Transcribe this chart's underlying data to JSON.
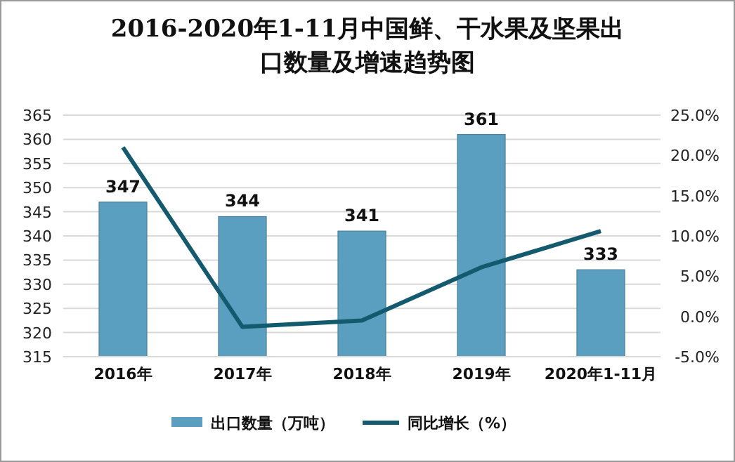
{
  "chart_data": {
    "type": "bar",
    "title": "2016-2020年1-11月中国鲜、干水果及坚果出口数量及增速趋势图",
    "categories": [
      "2016年",
      "2017年",
      "2018年",
      "2019年",
      "2020年1-11月"
    ],
    "series": [
      {
        "name": "出口数量（万吨）",
        "color": "#5b9fc0",
        "values": [
          347,
          344,
          341,
          361,
          333
        ]
      },
      {
        "name": "同比增长（%）",
        "type": "line",
        "axis": "y2",
        "color": "#145a6e",
        "values": [
          21.0,
          -1.3,
          -0.5,
          6.1,
          10.6
        ]
      }
    ],
    "ylim": [
      315,
      365
    ],
    "yticks": [
      315,
      320,
      325,
      330,
      335,
      340,
      345,
      350,
      355,
      360,
      365
    ],
    "y2lim": [
      -5,
      25
    ],
    "y2ticks": [
      {
        "value": -5,
        "label": "-5.0%"
      },
      {
        "value": 0,
        "label": "0.0%"
      },
      {
        "value": 5,
        "label": "5.0%"
      },
      {
        "value": 10,
        "label": "10.0%"
      },
      {
        "value": 15,
        "label": "15.0%"
      },
      {
        "value": 20,
        "label": "20.0%"
      },
      {
        "value": 25,
        "label": "25.0%"
      }
    ],
    "value_labels": [
      "347",
      "344",
      "341",
      "361",
      "333"
    ],
    "grid": "y",
    "legend": "bottom",
    "marker": "none",
    "line_style": "solid"
  }
}
